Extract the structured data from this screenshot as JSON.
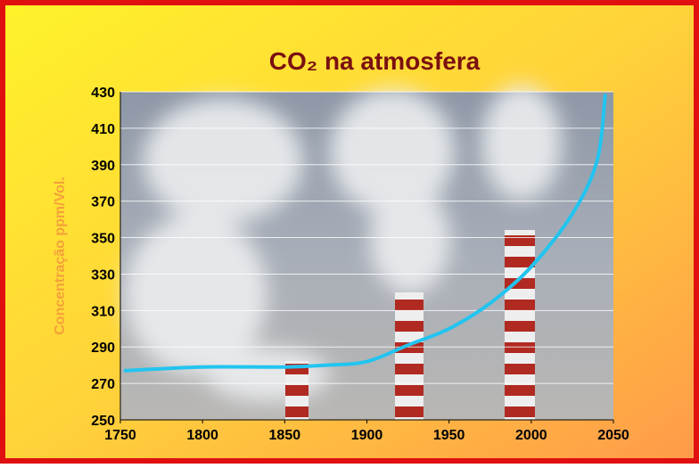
{
  "chart_data": {
    "type": "line",
    "title": "CO₂ na atmosfera",
    "y_label": "Concentração ppm/Vol.",
    "x": [
      1753,
      1800,
      1850,
      1875,
      1900,
      1925,
      1950,
      1975,
      2000,
      2025,
      2040,
      2045
    ],
    "values": [
      277,
      279,
      279,
      280,
      282,
      291,
      300,
      314,
      334,
      363,
      392,
      428
    ],
    "color": "#22c4f0",
    "xlim": [
      1750,
      2050
    ],
    "xticks": [
      1750,
      1800,
      1850,
      1900,
      1950,
      2000,
      2050
    ],
    "ylim": [
      250,
      430
    ],
    "yticks": [
      250,
      270,
      290,
      310,
      330,
      350,
      370,
      390,
      410,
      430
    ],
    "grid": true
  }
}
